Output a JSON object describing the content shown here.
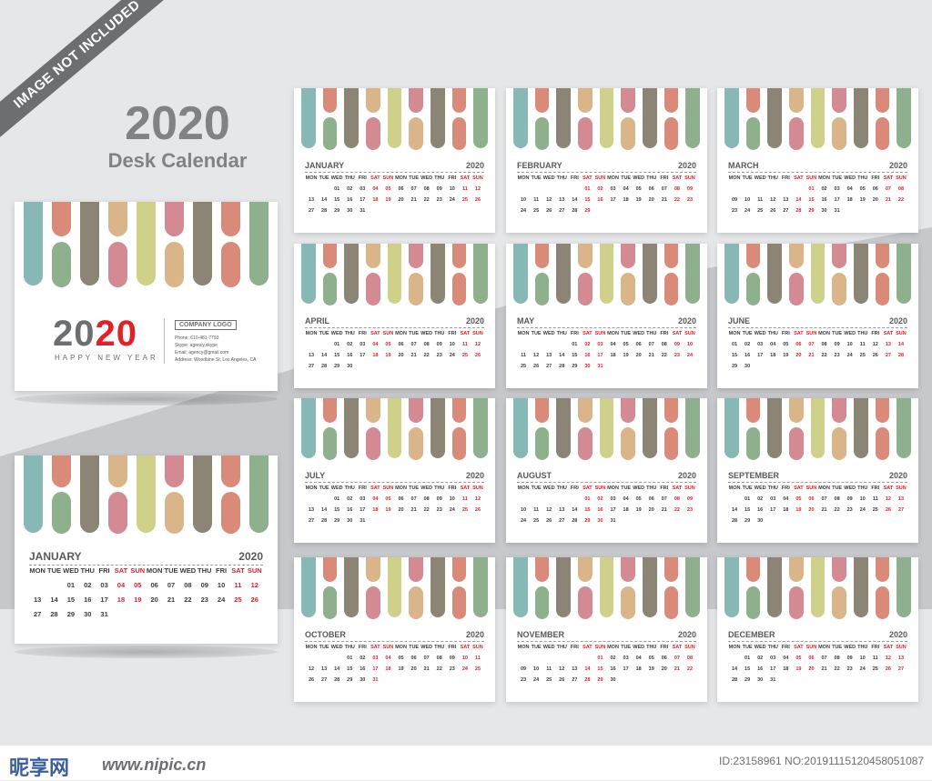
{
  "watermark": "IMAGE NOT INCLUDED",
  "hero": {
    "year": "2020",
    "subtitle": "Desk Calendar"
  },
  "colors": {
    "teal": "#88b8b6",
    "coral": "#d98a78",
    "taupe": "#8c8576",
    "sand": "#dbb58a",
    "olive": "#cfd08a",
    "rose": "#d48a93",
    "sage": "#8fb08c",
    "red": "#e22027",
    "gray": "#6d6e71"
  },
  "cover": {
    "year_a": "20",
    "year_b": "20",
    "tagline": "HAPPY NEW YEAR",
    "company_logo": "COMPANY LOGO",
    "phone": "Phone: 610-481-7793",
    "skype": "Skype: agency.skype",
    "email": "Email: agency@gmail.com",
    "address": "Address: Woodbine St, Los Angeles, CA"
  },
  "year_label": "2020",
  "day_names": [
    "MON",
    "TUE",
    "WED",
    "THU",
    "FRI",
    "SAT",
    "SUN",
    "MON",
    "TUE",
    "WED",
    "THU",
    "FRI",
    "SAT",
    "SUN"
  ],
  "months": [
    {
      "name": "JANUARY",
      "offset": 2,
      "days": 31
    },
    {
      "name": "FEBRUARY",
      "offset": 5,
      "days": 29
    },
    {
      "name": "MARCH",
      "offset": 6,
      "days": 31
    },
    {
      "name": "APRIL",
      "offset": 2,
      "days": 30
    },
    {
      "name": "MAY",
      "offset": 4,
      "days": 31
    },
    {
      "name": "JUNE",
      "offset": 0,
      "days": 30
    },
    {
      "name": "JULY",
      "offset": 2,
      "days": 31
    },
    {
      "name": "AUGUST",
      "offset": 5,
      "days": 31
    },
    {
      "name": "SEPTEMBER",
      "offset": 1,
      "days": 30
    },
    {
      "name": "OCTOBER",
      "offset": 3,
      "days": 31
    },
    {
      "name": "NOVEMBER",
      "offset": 6,
      "days": 30
    },
    {
      "name": "DECEMBER",
      "offset": 1,
      "days": 31
    }
  ],
  "footer": {
    "site_logo": "昵享网",
    "url": "www.nipic.cn",
    "id": "ID:23158961 NO:20191115120458051087"
  }
}
